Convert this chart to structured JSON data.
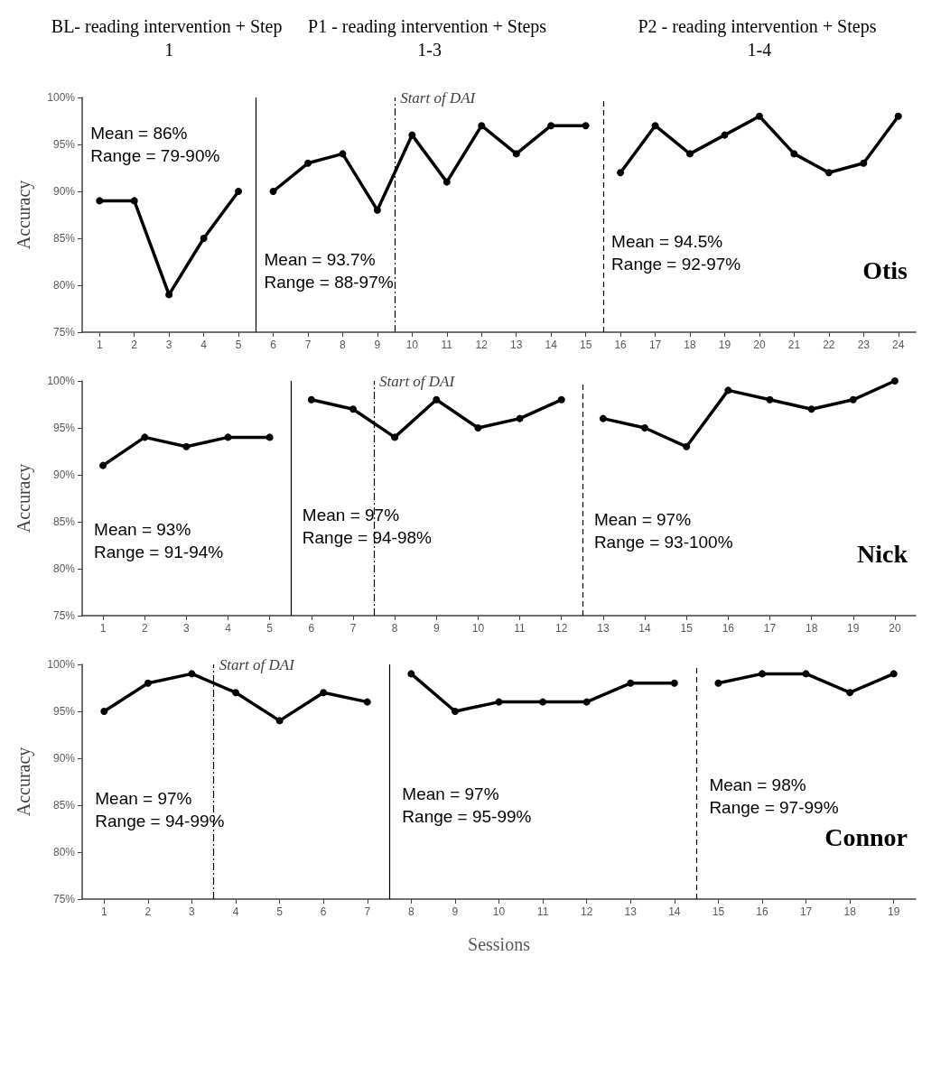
{
  "chart_data": [
    {
      "type": "line",
      "title": "Otis",
      "ylabel": "Accuracy",
      "marker": "circle",
      "line_style": "solid",
      "xlim": [
        0.5,
        24.5
      ],
      "xticks": [
        1,
        2,
        3,
        4,
        5,
        6,
        7,
        8,
        9,
        10,
        11,
        12,
        13,
        14,
        15,
        16,
        17,
        18,
        19,
        20,
        21,
        22,
        23,
        24
      ],
      "ylim": [
        75,
        100
      ],
      "yticks": [
        {
          "value": 75,
          "label": "75%"
        },
        {
          "value": 80,
          "label": "80%"
        },
        {
          "value": 85,
          "label": "85%"
        },
        {
          "value": 90,
          "label": "90%"
        },
        {
          "value": 95,
          "label": "95%"
        },
        {
          "value": 100,
          "label": "100%"
        }
      ],
      "series": [
        {
          "color": "#000000",
          "x": [
            1,
            2,
            3,
            4,
            5
          ],
          "values": [
            89,
            89,
            79,
            85,
            90
          ]
        },
        {
          "color": "#000000",
          "x": [
            6,
            7,
            8,
            9,
            10,
            11,
            12,
            13,
            14,
            15
          ],
          "values": [
            90,
            93,
            94,
            88,
            96,
            91,
            97,
            94,
            97,
            97
          ]
        },
        {
          "color": "#000000",
          "x": [
            16,
            17,
            18,
            19,
            20,
            21,
            22,
            23,
            24
          ],
          "values": [
            92,
            97,
            94,
            96,
            98,
            94,
            92,
            93,
            98
          ]
        }
      ],
      "ref_lines": [
        {
          "axis": "x",
          "value": 5.5,
          "line_style": "solid",
          "color": "#000000"
        },
        {
          "axis": "x",
          "value": 9.5,
          "line_style": "dotted",
          "color": "#000000",
          "label": "Start of DAI"
        },
        {
          "axis": "x",
          "value": 15.5,
          "line_style": "dashed",
          "color": "#000000"
        }
      ],
      "annotations": [
        "BL- reading intervention + Step 1",
        "P1 - reading intervention + Steps 1-3",
        "P2 - reading intervention + Steps 1-4",
        "Mean = 86%\nRange = 79-90%",
        "Mean = 93.7%\nRange = 88-97%",
        "Mean = 94.5%\nRange = 92-97%"
      ]
    },
    {
      "type": "line",
      "title": "Nick",
      "ylabel": "Accuracy",
      "marker": "circle",
      "line_style": "solid",
      "xlim": [
        0.5,
        20.5
      ],
      "xticks": [
        1,
        2,
        3,
        4,
        5,
        6,
        7,
        8,
        9,
        10,
        11,
        12,
        13,
        14,
        15,
        16,
        17,
        18,
        19,
        20
      ],
      "ylim": [
        75,
        100
      ],
      "yticks": [
        {
          "value": 75,
          "label": "75%"
        },
        {
          "value": 80,
          "label": "80%"
        },
        {
          "value": 85,
          "label": "85%"
        },
        {
          "value": 90,
          "label": "90%"
        },
        {
          "value": 95,
          "label": "95%"
        },
        {
          "value": 100,
          "label": "100%"
        }
      ],
      "series": [
        {
          "color": "#000000",
          "x": [
            1,
            2,
            3,
            4,
            5
          ],
          "values": [
            91,
            94,
            93,
            94,
            94
          ]
        },
        {
          "color": "#000000",
          "x": [
            6,
            7,
            8,
            9,
            10,
            11,
            12
          ],
          "values": [
            98,
            97,
            94,
            98,
            95,
            96,
            98
          ]
        },
        {
          "color": "#000000",
          "x": [
            13,
            14,
            15,
            16,
            17,
            18,
            19,
            20
          ],
          "values": [
            96,
            95,
            93,
            99,
            98,
            97,
            98,
            100
          ]
        }
      ],
      "ref_lines": [
        {
          "axis": "x",
          "value": 5.5,
          "line_style": "solid",
          "color": "#000000"
        },
        {
          "axis": "x",
          "value": 7.5,
          "line_style": "dotted",
          "color": "#000000",
          "label": "Start of DAI"
        },
        {
          "axis": "x",
          "value": 12.5,
          "line_style": "dashed",
          "color": "#000000"
        }
      ],
      "annotations": [
        "Mean = 93%\nRange = 91-94%",
        "Mean = 97%\nRange = 94-98%",
        "Mean = 97%\nRange = 93-100%"
      ]
    },
    {
      "type": "line",
      "title": "Connor",
      "ylabel": "Accuracy",
      "xlabel": "Sessions",
      "marker": "circle",
      "line_style": "solid",
      "xlim": [
        0.5,
        19.5
      ],
      "xticks": [
        1,
        2,
        3,
        4,
        5,
        6,
        7,
        8,
        9,
        10,
        11,
        12,
        13,
        14,
        15,
        16,
        17,
        18,
        19
      ],
      "ylim": [
        75,
        100
      ],
      "yticks": [
        {
          "value": 75,
          "label": "75%"
        },
        {
          "value": 80,
          "label": "80%"
        },
        {
          "value": 85,
          "label": "85%"
        },
        {
          "value": 90,
          "label": "90%"
        },
        {
          "value": 95,
          "label": "95%"
        },
        {
          "value": 100,
          "label": "100%"
        }
      ],
      "series": [
        {
          "color": "#000000",
          "x": [
            1,
            2,
            3,
            4,
            5,
            6,
            7
          ],
          "values": [
            95,
            98,
            99,
            97,
            94,
            97,
            96
          ]
        },
        {
          "color": "#000000",
          "x": [
            8,
            9,
            10,
            11,
            12,
            13,
            14
          ],
          "values": [
            99,
            95,
            96,
            96,
            96,
            98,
            98
          ]
        },
        {
          "color": "#000000",
          "x": [
            15,
            16,
            17,
            18,
            19
          ],
          "values": [
            98,
            99,
            99,
            97,
            99
          ]
        }
      ],
      "ref_lines": [
        {
          "axis": "x",
          "value": 3.5,
          "line_style": "dotted",
          "color": "#000000",
          "label": "Start of DAI"
        },
        {
          "axis": "x",
          "value": 7.5,
          "line_style": "solid",
          "color": "#000000"
        },
        {
          "axis": "x",
          "value": 14.5,
          "line_style": "dashed",
          "color": "#000000"
        }
      ],
      "annotations": [
        "Mean = 97%\nRange = 94-99%",
        "Mean = 97%\nRange = 95-99%",
        "Mean = 98%\nRange = 97-99%"
      ]
    }
  ]
}
